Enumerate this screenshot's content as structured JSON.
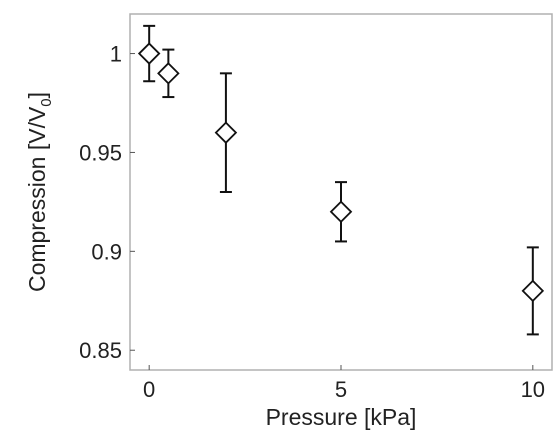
{
  "chart_data": {
    "type": "scatter",
    "title": "",
    "xlabel": "Pressure [kPa]",
    "ylabel": {
      "prefix": "Compression [V/V",
      "subscript": "0",
      "suffix": "]"
    },
    "xlim": [
      -0.5,
      10.5
    ],
    "ylim": [
      0.84,
      1.02
    ],
    "xticks": [
      0,
      5,
      10
    ],
    "xtick_labels": [
      "0",
      "5",
      "10"
    ],
    "yticks": [
      0.85,
      0.9,
      0.95,
      1.0
    ],
    "ytick_labels": [
      "0.85",
      "0.9",
      "0.95",
      "1"
    ],
    "grid": false,
    "marker": "diamond",
    "series": [
      {
        "points": [
          {
            "x": 0,
            "y": 1.0,
            "err": 0.014
          },
          {
            "x": 0.5,
            "y": 0.99,
            "err": 0.012
          },
          {
            "x": 2,
            "y": 0.96,
            "err": 0.03
          },
          {
            "x": 5,
            "y": 0.92,
            "err": 0.015
          },
          {
            "x": 10,
            "y": 0.88,
            "err": 0.022
          }
        ]
      }
    ]
  }
}
